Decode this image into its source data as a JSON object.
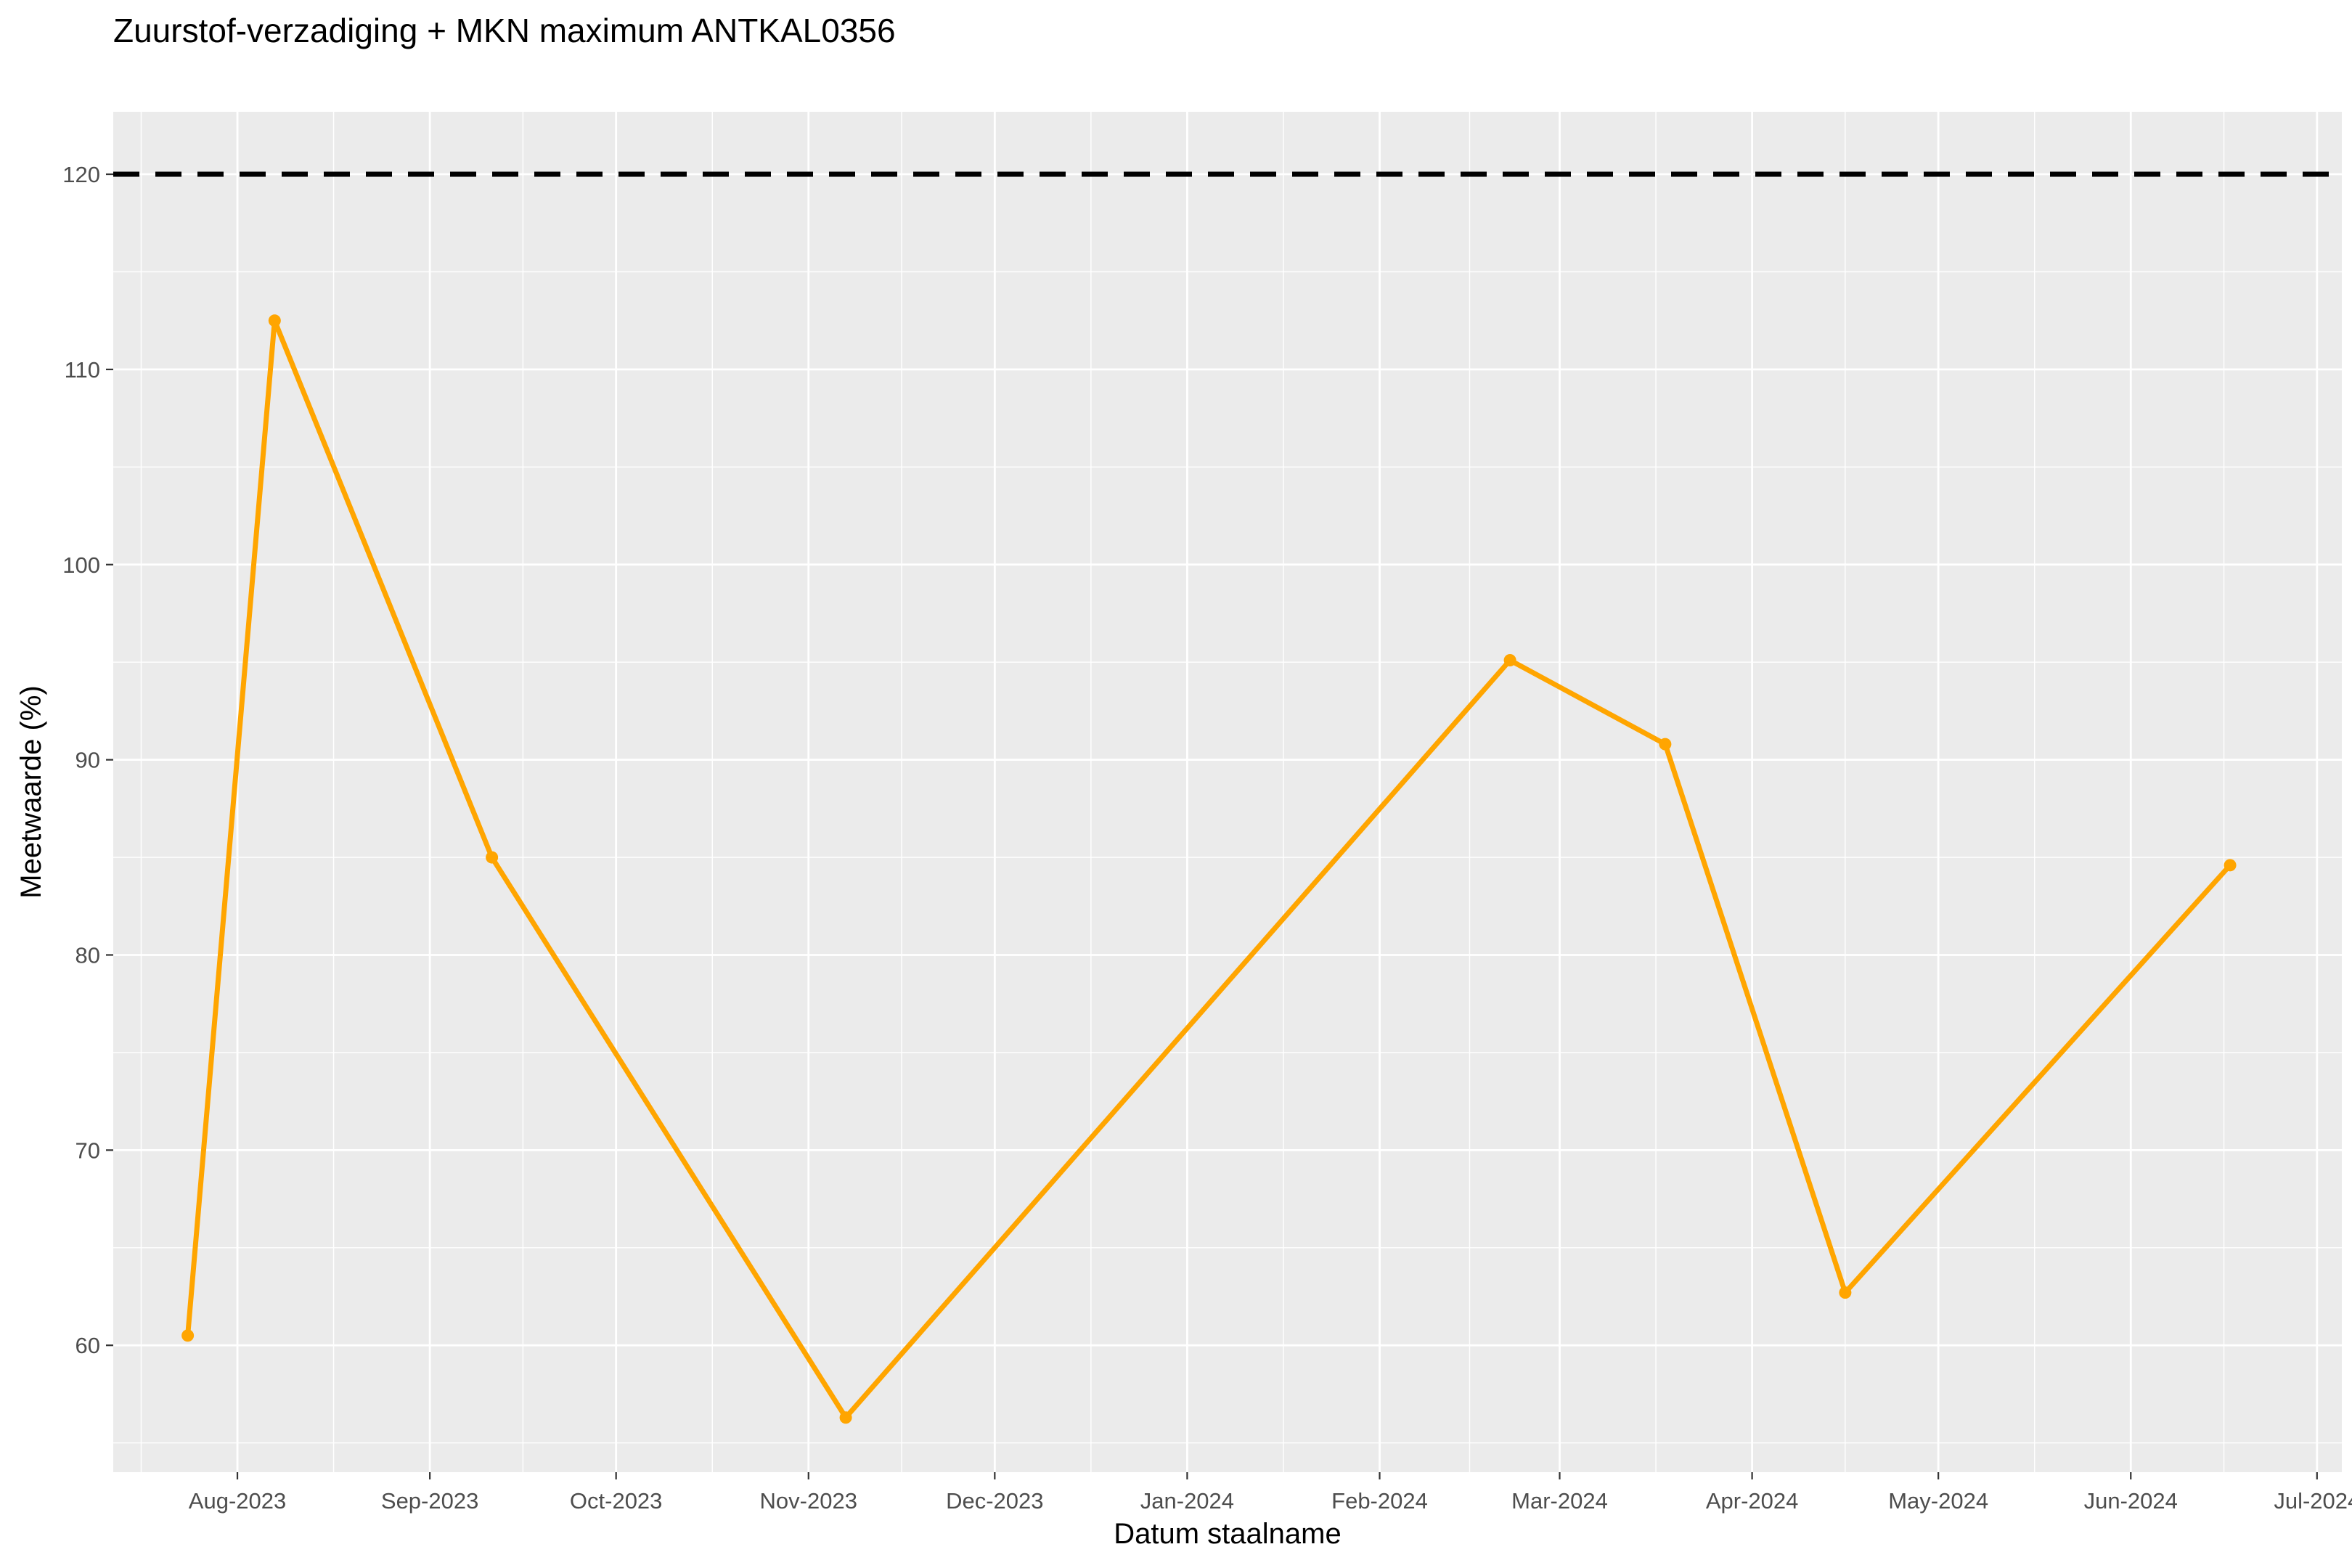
{
  "chart_data": {
    "type": "line",
    "title": "Zuurstof-verzadiging + MKN maximum ANTKAL0356",
    "xlabel": "Datum staalname",
    "ylabel": "Meetwaarde (%)",
    "xlim": [
      "2023-07-12",
      "2024-07-05"
    ],
    "ylim": [
      53.5,
      123.2
    ],
    "x_ticks": [
      {
        "date": "2023-08-01",
        "label": "Aug-2023"
      },
      {
        "date": "2023-09-01",
        "label": "Sep-2023"
      },
      {
        "date": "2023-10-01",
        "label": "Oct-2023"
      },
      {
        "date": "2023-11-01",
        "label": "Nov-2023"
      },
      {
        "date": "2023-12-01",
        "label": "Dec-2023"
      },
      {
        "date": "2024-01-01",
        "label": "Jan-2024"
      },
      {
        "date": "2024-02-01",
        "label": "Feb-2024"
      },
      {
        "date": "2024-03-01",
        "label": "Mar-2024"
      },
      {
        "date": "2024-04-01",
        "label": "Apr-2024"
      },
      {
        "date": "2024-05-01",
        "label": "May-2024"
      },
      {
        "date": "2024-06-01",
        "label": "Jun-2024"
      },
      {
        "date": "2024-07-01",
        "label": "Jul-2024"
      }
    ],
    "y_ticks": [
      60,
      70,
      80,
      90,
      100,
      110,
      120
    ],
    "grid": true,
    "series": [
      {
        "color": "#FFA500",
        "x": [
          "2023-07-24",
          "2023-08-07",
          "2023-09-11",
          "2023-11-07",
          "2024-02-22",
          "2024-03-18",
          "2024-04-16",
          "2024-06-17"
        ],
        "y": [
          60.5,
          112.5,
          85.0,
          56.3,
          95.1,
          90.8,
          62.7,
          84.6
        ]
      }
    ],
    "reference_lines": [
      {
        "y": 120,
        "style": "dashed",
        "color": "#000000"
      }
    ]
  },
  "colors": {
    "panel_background": "#EBEBEB",
    "grid_major": "#FFFFFF",
    "series": "#FFA500",
    "reference": "#000000"
  }
}
